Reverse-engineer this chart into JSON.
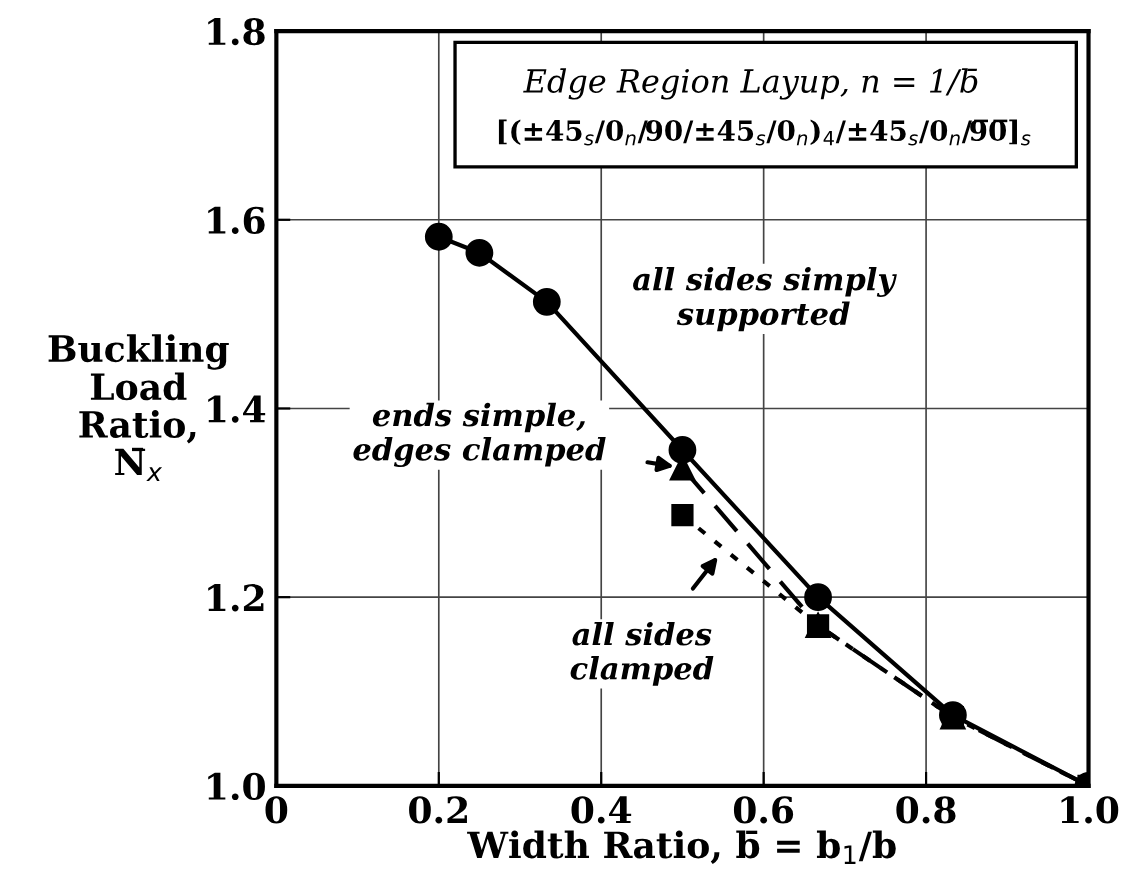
{
  "chart_data": {
    "type": "line",
    "title": "Edge Region Layup, n = 1/b̄",
    "subtitle": "[(±45$_{s}$/0$_{n}$/90/±45$_{s}$/0$_{n}$)$_{4}$/±45$_{s}$/0$_{n}$/9̅0̅]$_{s}$",
    "xlabel": "Width Ratio, b̄ = b$_{1}$/b",
    "ylabel": "Buckling\nLoad\nRatio,\nN̄$_{x}$",
    "series": [
      {
        "color": "#000000",
        "marker": "circle",
        "line_style": "solid",
        "x": [
          0.2,
          0.25,
          0.333,
          0.5,
          0.667,
          0.833,
          1.0
        ],
        "values": [
          1.582,
          1.565,
          1.513,
          1.356,
          1.2,
          1.075,
          1.0
        ]
      },
      {
        "color": "#000000",
        "marker": "triangle",
        "line_style": "dashed",
        "x": [
          0.5,
          0.667,
          0.833,
          1.0
        ],
        "values": [
          1.337,
          1.17,
          1.073,
          1.0
        ]
      },
      {
        "color": "#000000",
        "marker": "square",
        "line_style": "dotted",
        "x": [
          0.5,
          0.667,
          0.833,
          1.0
        ],
        "values": [
          1.287,
          1.17,
          1.073,
          1.0
        ]
      }
    ],
    "annotations": [
      "all sides simply\nsupported",
      {
        "text": "ends simple,\nedges clamped",
        "x": 0.5,
        "y": 1.337
      },
      {
        "text": "all sides\nclamped",
        "x": 0.55,
        "y": 1.25
      }
    ],
    "xlim": [
      0,
      1.0
    ],
    "ylim": [
      1.0,
      1.8
    ],
    "xticks": [
      0,
      0.2,
      0.4,
      0.6,
      0.8,
      {
        "value": 1.0,
        "label": "1.0"
      }
    ],
    "yticks": [
      {
        "value": 1.0,
        "label": "1.0"
      },
      1.2,
      1.4,
      1.6,
      1.8
    ],
    "grid": true
  }
}
